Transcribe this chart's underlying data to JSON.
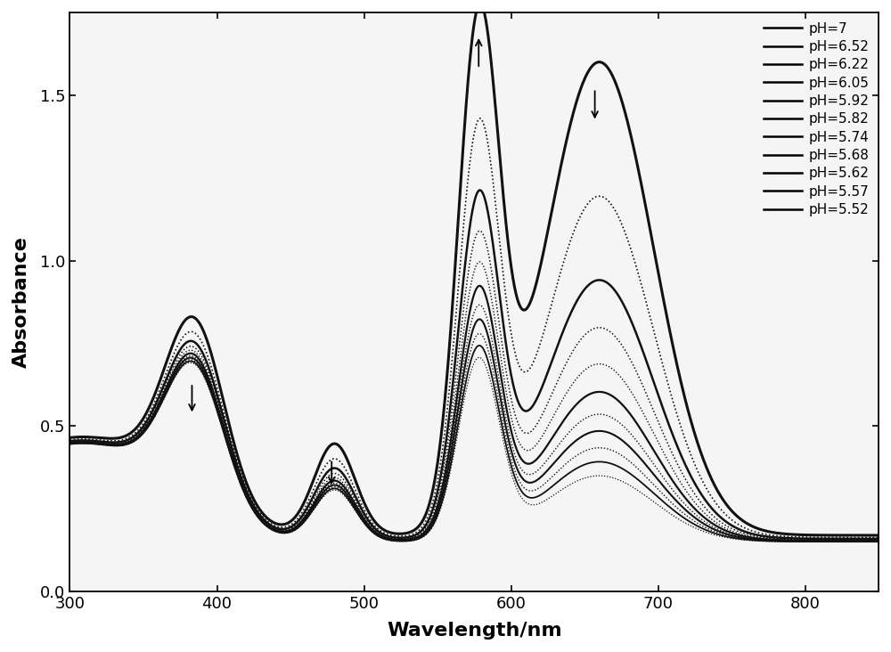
{
  "ph_values": [
    7.0,
    6.52,
    6.22,
    6.05,
    5.92,
    5.82,
    5.74,
    5.68,
    5.62,
    5.57,
    5.52
  ],
  "legend_labels": [
    "pH=7",
    "pH=6.52",
    "pH=6.22",
    "pH=6.05",
    "pH=5.92",
    "pH=5.82",
    "pH=5.74",
    "pH=5.68",
    "pH=5.62",
    "pH=5.57",
    "pH=5.52"
  ],
  "linestyles": [
    "solid",
    "dotted",
    "solid",
    "dotted",
    "dotted",
    "solid",
    "dotted",
    "solid",
    "dotted",
    "solid",
    "dotted"
  ],
  "linewidths": [
    2.2,
    1.2,
    1.8,
    1.1,
    1.0,
    1.6,
    1.0,
    1.5,
    1.0,
    1.3,
    0.9
  ],
  "xmin": 300,
  "xmax": 850,
  "ymin": 0.0,
  "ymax": 1.75,
  "xlabel": "Wavelength/nm",
  "ylabel": "Absorbance",
  "background_color": "#ffffff",
  "plot_bg_color": "#f5f5f5",
  "line_color": "#111111",
  "xticks": [
    300,
    400,
    500,
    600,
    700,
    800
  ],
  "yticks": [
    0.0,
    0.5,
    1.0,
    1.5
  ],
  "arrows": [
    {
      "x": 383,
      "y_tail": 0.63,
      "y_head": 0.535,
      "direction": "down"
    },
    {
      "x": 478,
      "y_tail": 0.4,
      "y_head": 0.315,
      "direction": "down"
    },
    {
      "x": 578,
      "y_tail": 1.58,
      "y_head": 1.68,
      "direction": "up"
    },
    {
      "x": 657,
      "y_tail": 1.52,
      "y_head": 1.42,
      "direction": "down"
    }
  ]
}
